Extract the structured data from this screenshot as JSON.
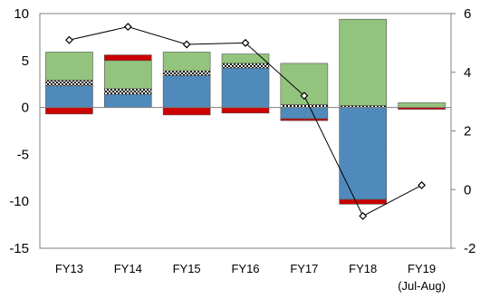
{
  "chart_data": {
    "type": "bar",
    "categories": [
      "FY13",
      "FY14",
      "FY15",
      "FY16",
      "FY17",
      "FY18",
      "FY19"
    ],
    "category_sublabels": [
      "",
      "",
      "",
      "",
      "",
      "",
      "(Jul-Aug)"
    ],
    "left_axis": {
      "ylim": [
        -15,
        10
      ],
      "ticks": [
        "10",
        "5",
        "0",
        "-5",
        "-10",
        "-15"
      ]
    },
    "right_axis": {
      "ylim": [
        -2,
        6
      ],
      "ticks": [
        "6",
        "4",
        "2",
        "0",
        "-2"
      ]
    },
    "series": [
      {
        "color": "#4a86b8",
        "pattern": "hatched",
        "values": [
          2.3,
          1.4,
          3.4,
          4.2,
          -1.2,
          -9.8,
          0.0
        ]
      },
      {
        "color": "#ffffff",
        "pattern": "checkered",
        "values": [
          0.6,
          0.6,
          0.5,
          0.5,
          0.3,
          0.2,
          0.0
        ]
      },
      {
        "color": "#93c47d",
        "values": [
          3.0,
          3.0,
          2.0,
          1.0,
          4.4,
          9.2,
          0.5
        ]
      },
      {
        "color": "#cc0000",
        "values": [
          -0.7,
          0.6,
          -0.8,
          -0.6,
          -0.2,
          -0.5,
          -0.2
        ]
      }
    ],
    "line": {
      "axis": "right",
      "color": "#000000",
      "marker": "diamond",
      "values": [
        5.1,
        5.55,
        4.95,
        5.0,
        3.2,
        -0.9,
        0.15
      ]
    }
  }
}
